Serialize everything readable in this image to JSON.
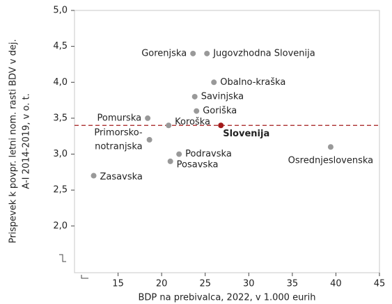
{
  "chart_data": {
    "type": "scatter",
    "x_label": "BDP na prebivalca, 2022, v 1.000 eurih",
    "y_label": [
      "Prispevek k povpr. letni  nom. rasti BDV v dej.",
      "A-I 2014-2019, v o. t."
    ],
    "labels": [
      "Gorenjska",
      "Jugovzhodna Slovenija",
      "Obalno-kraška",
      "Savinjska",
      "Goriška",
      "Koroška",
      "Slovenija",
      "Pomurska",
      [
        "Primorsko-",
        "notranjska"
      ],
      "Podravska",
      "Posavska",
      "Osrednjeslovenska",
      "Zasavska"
    ],
    "x": [
      23.6,
      25.2,
      26.0,
      23.8,
      24.0,
      20.8,
      26.8,
      18.4,
      18.6,
      22.0,
      21.0,
      39.4,
      12.2
    ],
    "y": [
      4.4,
      4.4,
      4.0,
      3.8,
      3.6,
      3.4,
      3.4,
      3.5,
      3.2,
      3.0,
      2.9,
      3.1,
      2.7
    ],
    "colors": [
      "#999999",
      "#999999",
      "#999999",
      "#999999",
      "#999999",
      "#999999",
      "#a31a1a",
      "#999999",
      "#999999",
      "#999999",
      "#999999",
      "#999999",
      "#999999"
    ],
    "reference_line": 3.4,
    "reference_color": "#a31a1a",
    "xlim": [
      10,
      45
    ],
    "xticks": [
      15,
      20,
      25,
      30,
      35,
      40,
      45
    ],
    "ylim": [
      1.35,
      5.0
    ],
    "yticks": [
      {
        "value": 2.0,
        "label": "2,0"
      },
      {
        "value": 2.5,
        "label": "2,5"
      },
      {
        "value": 3.0,
        "label": "3,0"
      },
      {
        "value": 3.5,
        "label": "3,5"
      },
      {
        "value": 4.0,
        "label": "4,0"
      },
      {
        "value": 4.5,
        "label": "4,5"
      },
      {
        "value": 5.0,
        "label": "5,0"
      }
    ]
  }
}
